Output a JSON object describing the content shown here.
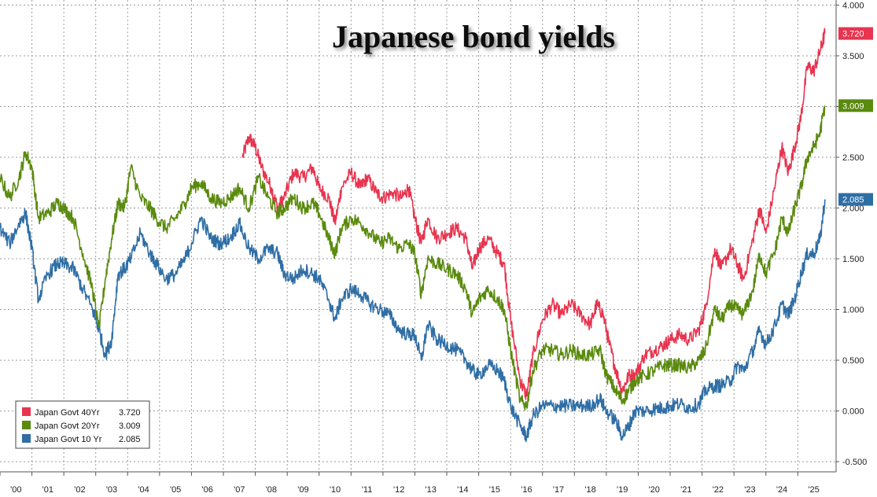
{
  "chart_data": {
    "type": "line",
    "title": "Japanese bond yields",
    "xlabel": "",
    "ylabel": "",
    "x_tick_labels": [
      "'00",
      "'01",
      "'02",
      "'03",
      "'04",
      "'05",
      "'06",
      "'07",
      "'08",
      "'09",
      "'10",
      "'11",
      "'12",
      "'13",
      "'14",
      "'15",
      "'16",
      "'17",
      "'18",
      "'19",
      "'20",
      "'21",
      "'22",
      "'23",
      "'24",
      "'25"
    ],
    "y_tick_labels": [
      "4.000",
      "3.500",
      "3.000",
      "2.500",
      "2.000",
      "1.500",
      "1.000",
      "0.500",
      "0.000",
      "-0.500"
    ],
    "ylim": [
      -0.6,
      4.05
    ],
    "xlim": [
      2000.0,
      2026.2
    ],
    "grid": true,
    "legend_position": "bottom-left",
    "series": [
      {
        "name": "Japan Govt 40Yr",
        "last_value": "3.720",
        "color": "#e8344f",
        "points": [
          [
            2007.6,
            2.5
          ],
          [
            2007.8,
            2.7
          ],
          [
            2008.0,
            2.6
          ],
          [
            2008.2,
            2.4
          ],
          [
            2008.5,
            2.2
          ],
          [
            2008.7,
            2.0
          ],
          [
            2008.9,
            2.1
          ],
          [
            2009.2,
            2.35
          ],
          [
            2009.5,
            2.3
          ],
          [
            2009.8,
            2.4
          ],
          [
            2010.0,
            2.2
          ],
          [
            2010.3,
            2.1
          ],
          [
            2010.5,
            1.85
          ],
          [
            2010.7,
            2.2
          ],
          [
            2011.0,
            2.35
          ],
          [
            2011.3,
            2.2
          ],
          [
            2011.5,
            2.3
          ],
          [
            2011.8,
            2.15
          ],
          [
            2012.0,
            2.1
          ],
          [
            2012.3,
            2.15
          ],
          [
            2012.6,
            2.1
          ],
          [
            2012.8,
            2.2
          ],
          [
            2013.0,
            1.9
          ],
          [
            2013.2,
            1.65
          ],
          [
            2013.4,
            1.9
          ],
          [
            2013.7,
            1.7
          ],
          [
            2014.0,
            1.75
          ],
          [
            2014.3,
            1.8
          ],
          [
            2014.6,
            1.7
          ],
          [
            2014.8,
            1.4
          ],
          [
            2015.0,
            1.6
          ],
          [
            2015.3,
            1.7
          ],
          [
            2015.6,
            1.55
          ],
          [
            2015.8,
            1.45
          ],
          [
            2016.0,
            0.9
          ],
          [
            2016.3,
            0.3
          ],
          [
            2016.5,
            0.15
          ],
          [
            2016.7,
            0.55
          ],
          [
            2017.0,
            0.9
          ],
          [
            2017.3,
            1.05
          ],
          [
            2017.6,
            0.95
          ],
          [
            2017.9,
            1.05
          ],
          [
            2018.2,
            0.95
          ],
          [
            2018.5,
            0.85
          ],
          [
            2018.7,
            1.05
          ],
          [
            2018.9,
            0.95
          ],
          [
            2019.1,
            0.65
          ],
          [
            2019.3,
            0.4
          ],
          [
            2019.5,
            0.2
          ],
          [
            2019.7,
            0.35
          ],
          [
            2019.9,
            0.35
          ],
          [
            2020.2,
            0.55
          ],
          [
            2020.5,
            0.6
          ],
          [
            2020.8,
            0.65
          ],
          [
            2021.0,
            0.7
          ],
          [
            2021.3,
            0.75
          ],
          [
            2021.6,
            0.7
          ],
          [
            2021.9,
            0.8
          ],
          [
            2022.1,
            1.0
          ],
          [
            2022.4,
            1.6
          ],
          [
            2022.6,
            1.4
          ],
          [
            2022.9,
            1.6
          ],
          [
            2023.1,
            1.45
          ],
          [
            2023.3,
            1.3
          ],
          [
            2023.6,
            1.7
          ],
          [
            2023.8,
            2.0
          ],
          [
            2024.0,
            1.75
          ],
          [
            2024.3,
            2.25
          ],
          [
            2024.5,
            2.6
          ],
          [
            2024.7,
            2.35
          ],
          [
            2024.9,
            2.6
          ],
          [
            2025.1,
            2.9
          ],
          [
            2025.3,
            3.4
          ],
          [
            2025.5,
            3.35
          ],
          [
            2025.7,
            3.55
          ],
          [
            2025.85,
            3.72
          ]
        ]
      },
      {
        "name": "Japan Govt 20Yr",
        "last_value": "3.009",
        "color": "#5a8a0e",
        "points": [
          [
            2000.0,
            2.3
          ],
          [
            2000.3,
            2.1
          ],
          [
            2000.6,
            2.3
          ],
          [
            2000.8,
            2.55
          ],
          [
            2001.0,
            2.4
          ],
          [
            2001.2,
            1.9
          ],
          [
            2001.5,
            1.95
          ],
          [
            2001.8,
            2.05
          ],
          [
            2002.0,
            2.0
          ],
          [
            2002.3,
            1.9
          ],
          [
            2002.6,
            1.55
          ],
          [
            2002.9,
            1.2
          ],
          [
            2003.1,
            0.8
          ],
          [
            2003.3,
            1.3
          ],
          [
            2003.5,
            1.7
          ],
          [
            2003.7,
            2.05
          ],
          [
            2003.9,
            2.0
          ],
          [
            2004.1,
            2.4
          ],
          [
            2004.4,
            2.1
          ],
          [
            2004.7,
            2.0
          ],
          [
            2004.9,
            1.9
          ],
          [
            2005.2,
            1.8
          ],
          [
            2005.5,
            1.9
          ],
          [
            2005.8,
            2.05
          ],
          [
            2006.0,
            2.2
          ],
          [
            2006.3,
            2.25
          ],
          [
            2006.6,
            2.1
          ],
          [
            2006.9,
            2.05
          ],
          [
            2007.2,
            2.1
          ],
          [
            2007.5,
            2.2
          ],
          [
            2007.8,
            2.0
          ],
          [
            2008.1,
            2.3
          ],
          [
            2008.4,
            2.1
          ],
          [
            2008.7,
            1.95
          ],
          [
            2008.9,
            2.0
          ],
          [
            2009.2,
            2.1
          ],
          [
            2009.5,
            2.0
          ],
          [
            2009.8,
            2.05
          ],
          [
            2010.0,
            1.95
          ],
          [
            2010.3,
            1.7
          ],
          [
            2010.5,
            1.55
          ],
          [
            2010.7,
            1.8
          ],
          [
            2011.0,
            1.9
          ],
          [
            2011.3,
            1.85
          ],
          [
            2011.6,
            1.75
          ],
          [
            2011.9,
            1.65
          ],
          [
            2012.2,
            1.7
          ],
          [
            2012.5,
            1.6
          ],
          [
            2012.8,
            1.65
          ],
          [
            2013.0,
            1.55
          ],
          [
            2013.2,
            1.15
          ],
          [
            2013.4,
            1.5
          ],
          [
            2013.7,
            1.45
          ],
          [
            2014.0,
            1.4
          ],
          [
            2014.3,
            1.35
          ],
          [
            2014.6,
            1.2
          ],
          [
            2014.8,
            0.95
          ],
          [
            2015.0,
            1.1
          ],
          [
            2015.3,
            1.2
          ],
          [
            2015.6,
            1.1
          ],
          [
            2015.8,
            1.0
          ],
          [
            2016.0,
            0.6
          ],
          [
            2016.3,
            0.1
          ],
          [
            2016.5,
            0.05
          ],
          [
            2016.7,
            0.4
          ],
          [
            2017.0,
            0.6
          ],
          [
            2017.3,
            0.6
          ],
          [
            2017.6,
            0.55
          ],
          [
            2017.9,
            0.6
          ],
          [
            2018.2,
            0.55
          ],
          [
            2018.5,
            0.55
          ],
          [
            2018.8,
            0.6
          ],
          [
            2019.0,
            0.35
          ],
          [
            2019.3,
            0.2
          ],
          [
            2019.5,
            0.1
          ],
          [
            2019.7,
            0.2
          ],
          [
            2019.9,
            0.3
          ],
          [
            2020.2,
            0.35
          ],
          [
            2020.5,
            0.4
          ],
          [
            2020.8,
            0.45
          ],
          [
            2021.0,
            0.45
          ],
          [
            2021.3,
            0.45
          ],
          [
            2021.6,
            0.42
          ],
          [
            2021.9,
            0.5
          ],
          [
            2022.1,
            0.6
          ],
          [
            2022.4,
            1.0
          ],
          [
            2022.6,
            0.9
          ],
          [
            2022.9,
            1.05
          ],
          [
            2023.1,
            1.0
          ],
          [
            2023.3,
            0.95
          ],
          [
            2023.6,
            1.2
          ],
          [
            2023.8,
            1.55
          ],
          [
            2024.0,
            1.35
          ],
          [
            2024.3,
            1.6
          ],
          [
            2024.5,
            1.9
          ],
          [
            2024.7,
            1.75
          ],
          [
            2024.9,
            2.0
          ],
          [
            2025.1,
            2.2
          ],
          [
            2025.3,
            2.5
          ],
          [
            2025.5,
            2.6
          ],
          [
            2025.7,
            2.75
          ],
          [
            2025.85,
            3.009
          ]
        ]
      },
      {
        "name": "Japan Govt 10 Yr",
        "last_value": "2.085",
        "color": "#2f6ea5",
        "points": [
          [
            2000.0,
            1.8
          ],
          [
            2000.3,
            1.65
          ],
          [
            2000.6,
            1.85
          ],
          [
            2000.8,
            1.95
          ],
          [
            2001.0,
            1.6
          ],
          [
            2001.2,
            1.1
          ],
          [
            2001.5,
            1.35
          ],
          [
            2001.8,
            1.45
          ],
          [
            2002.0,
            1.45
          ],
          [
            2002.3,
            1.4
          ],
          [
            2002.6,
            1.2
          ],
          [
            2002.9,
            1.0
          ],
          [
            2003.1,
            0.8
          ],
          [
            2003.3,
            0.55
          ],
          [
            2003.5,
            0.7
          ],
          [
            2003.7,
            1.35
          ],
          [
            2003.9,
            1.4
          ],
          [
            2004.1,
            1.5
          ],
          [
            2004.4,
            1.75
          ],
          [
            2004.7,
            1.55
          ],
          [
            2004.9,
            1.45
          ],
          [
            2005.2,
            1.3
          ],
          [
            2005.5,
            1.35
          ],
          [
            2005.8,
            1.5
          ],
          [
            2006.0,
            1.65
          ],
          [
            2006.3,
            1.9
          ],
          [
            2006.6,
            1.7
          ],
          [
            2006.9,
            1.65
          ],
          [
            2007.2,
            1.7
          ],
          [
            2007.5,
            1.85
          ],
          [
            2007.8,
            1.6
          ],
          [
            2008.1,
            1.5
          ],
          [
            2008.4,
            1.6
          ],
          [
            2008.7,
            1.55
          ],
          [
            2008.9,
            1.35
          ],
          [
            2009.2,
            1.3
          ],
          [
            2009.5,
            1.4
          ],
          [
            2009.8,
            1.35
          ],
          [
            2010.0,
            1.3
          ],
          [
            2010.3,
            1.1
          ],
          [
            2010.5,
            0.9
          ],
          [
            2010.7,
            1.1
          ],
          [
            2011.0,
            1.2
          ],
          [
            2011.3,
            1.15
          ],
          [
            2011.6,
            1.05
          ],
          [
            2011.9,
            1.0
          ],
          [
            2012.2,
            0.95
          ],
          [
            2012.5,
            0.8
          ],
          [
            2012.8,
            0.75
          ],
          [
            2013.0,
            0.75
          ],
          [
            2013.2,
            0.5
          ],
          [
            2013.4,
            0.85
          ],
          [
            2013.7,
            0.7
          ],
          [
            2014.0,
            0.65
          ],
          [
            2014.3,
            0.6
          ],
          [
            2014.6,
            0.5
          ],
          [
            2014.8,
            0.4
          ],
          [
            2015.0,
            0.35
          ],
          [
            2015.3,
            0.45
          ],
          [
            2015.6,
            0.4
          ],
          [
            2015.8,
            0.3
          ],
          [
            2016.0,
            0.05
          ],
          [
            2016.3,
            -0.15
          ],
          [
            2016.5,
            -0.25
          ],
          [
            2016.7,
            -0.05
          ],
          [
            2017.0,
            0.05
          ],
          [
            2017.3,
            0.05
          ],
          [
            2017.6,
            0.05
          ],
          [
            2017.9,
            0.05
          ],
          [
            2018.2,
            0.05
          ],
          [
            2018.5,
            0.05
          ],
          [
            2018.8,
            0.12
          ],
          [
            2019.0,
            0.0
          ],
          [
            2019.3,
            -0.1
          ],
          [
            2019.5,
            -0.25
          ],
          [
            2019.7,
            -0.15
          ],
          [
            2019.9,
            0.0
          ],
          [
            2020.2,
            0.0
          ],
          [
            2020.5,
            0.02
          ],
          [
            2020.8,
            0.03
          ],
          [
            2021.0,
            0.05
          ],
          [
            2021.3,
            0.07
          ],
          [
            2021.6,
            0.03
          ],
          [
            2021.9,
            0.07
          ],
          [
            2022.1,
            0.2
          ],
          [
            2022.4,
            0.25
          ],
          [
            2022.6,
            0.25
          ],
          [
            2022.9,
            0.3
          ],
          [
            2023.1,
            0.45
          ],
          [
            2023.3,
            0.4
          ],
          [
            2023.6,
            0.6
          ],
          [
            2023.8,
            0.8
          ],
          [
            2024.0,
            0.65
          ],
          [
            2024.3,
            0.85
          ],
          [
            2024.5,
            1.05
          ],
          [
            2024.7,
            0.95
          ],
          [
            2024.9,
            1.1
          ],
          [
            2025.1,
            1.35
          ],
          [
            2025.3,
            1.55
          ],
          [
            2025.5,
            1.55
          ],
          [
            2025.7,
            1.7
          ],
          [
            2025.85,
            2.085
          ]
        ]
      }
    ]
  },
  "legend": {
    "items": [
      {
        "label": "Japan Govt 40Yr",
        "value": "3.720",
        "color": "#e8344f"
      },
      {
        "label": "Japan Govt 20Yr",
        "value": "3.009",
        "color": "#5a8a0e"
      },
      {
        "label": "Japan Govt 10 Yr",
        "value": "2.085",
        "color": "#2f6ea5"
      }
    ]
  }
}
